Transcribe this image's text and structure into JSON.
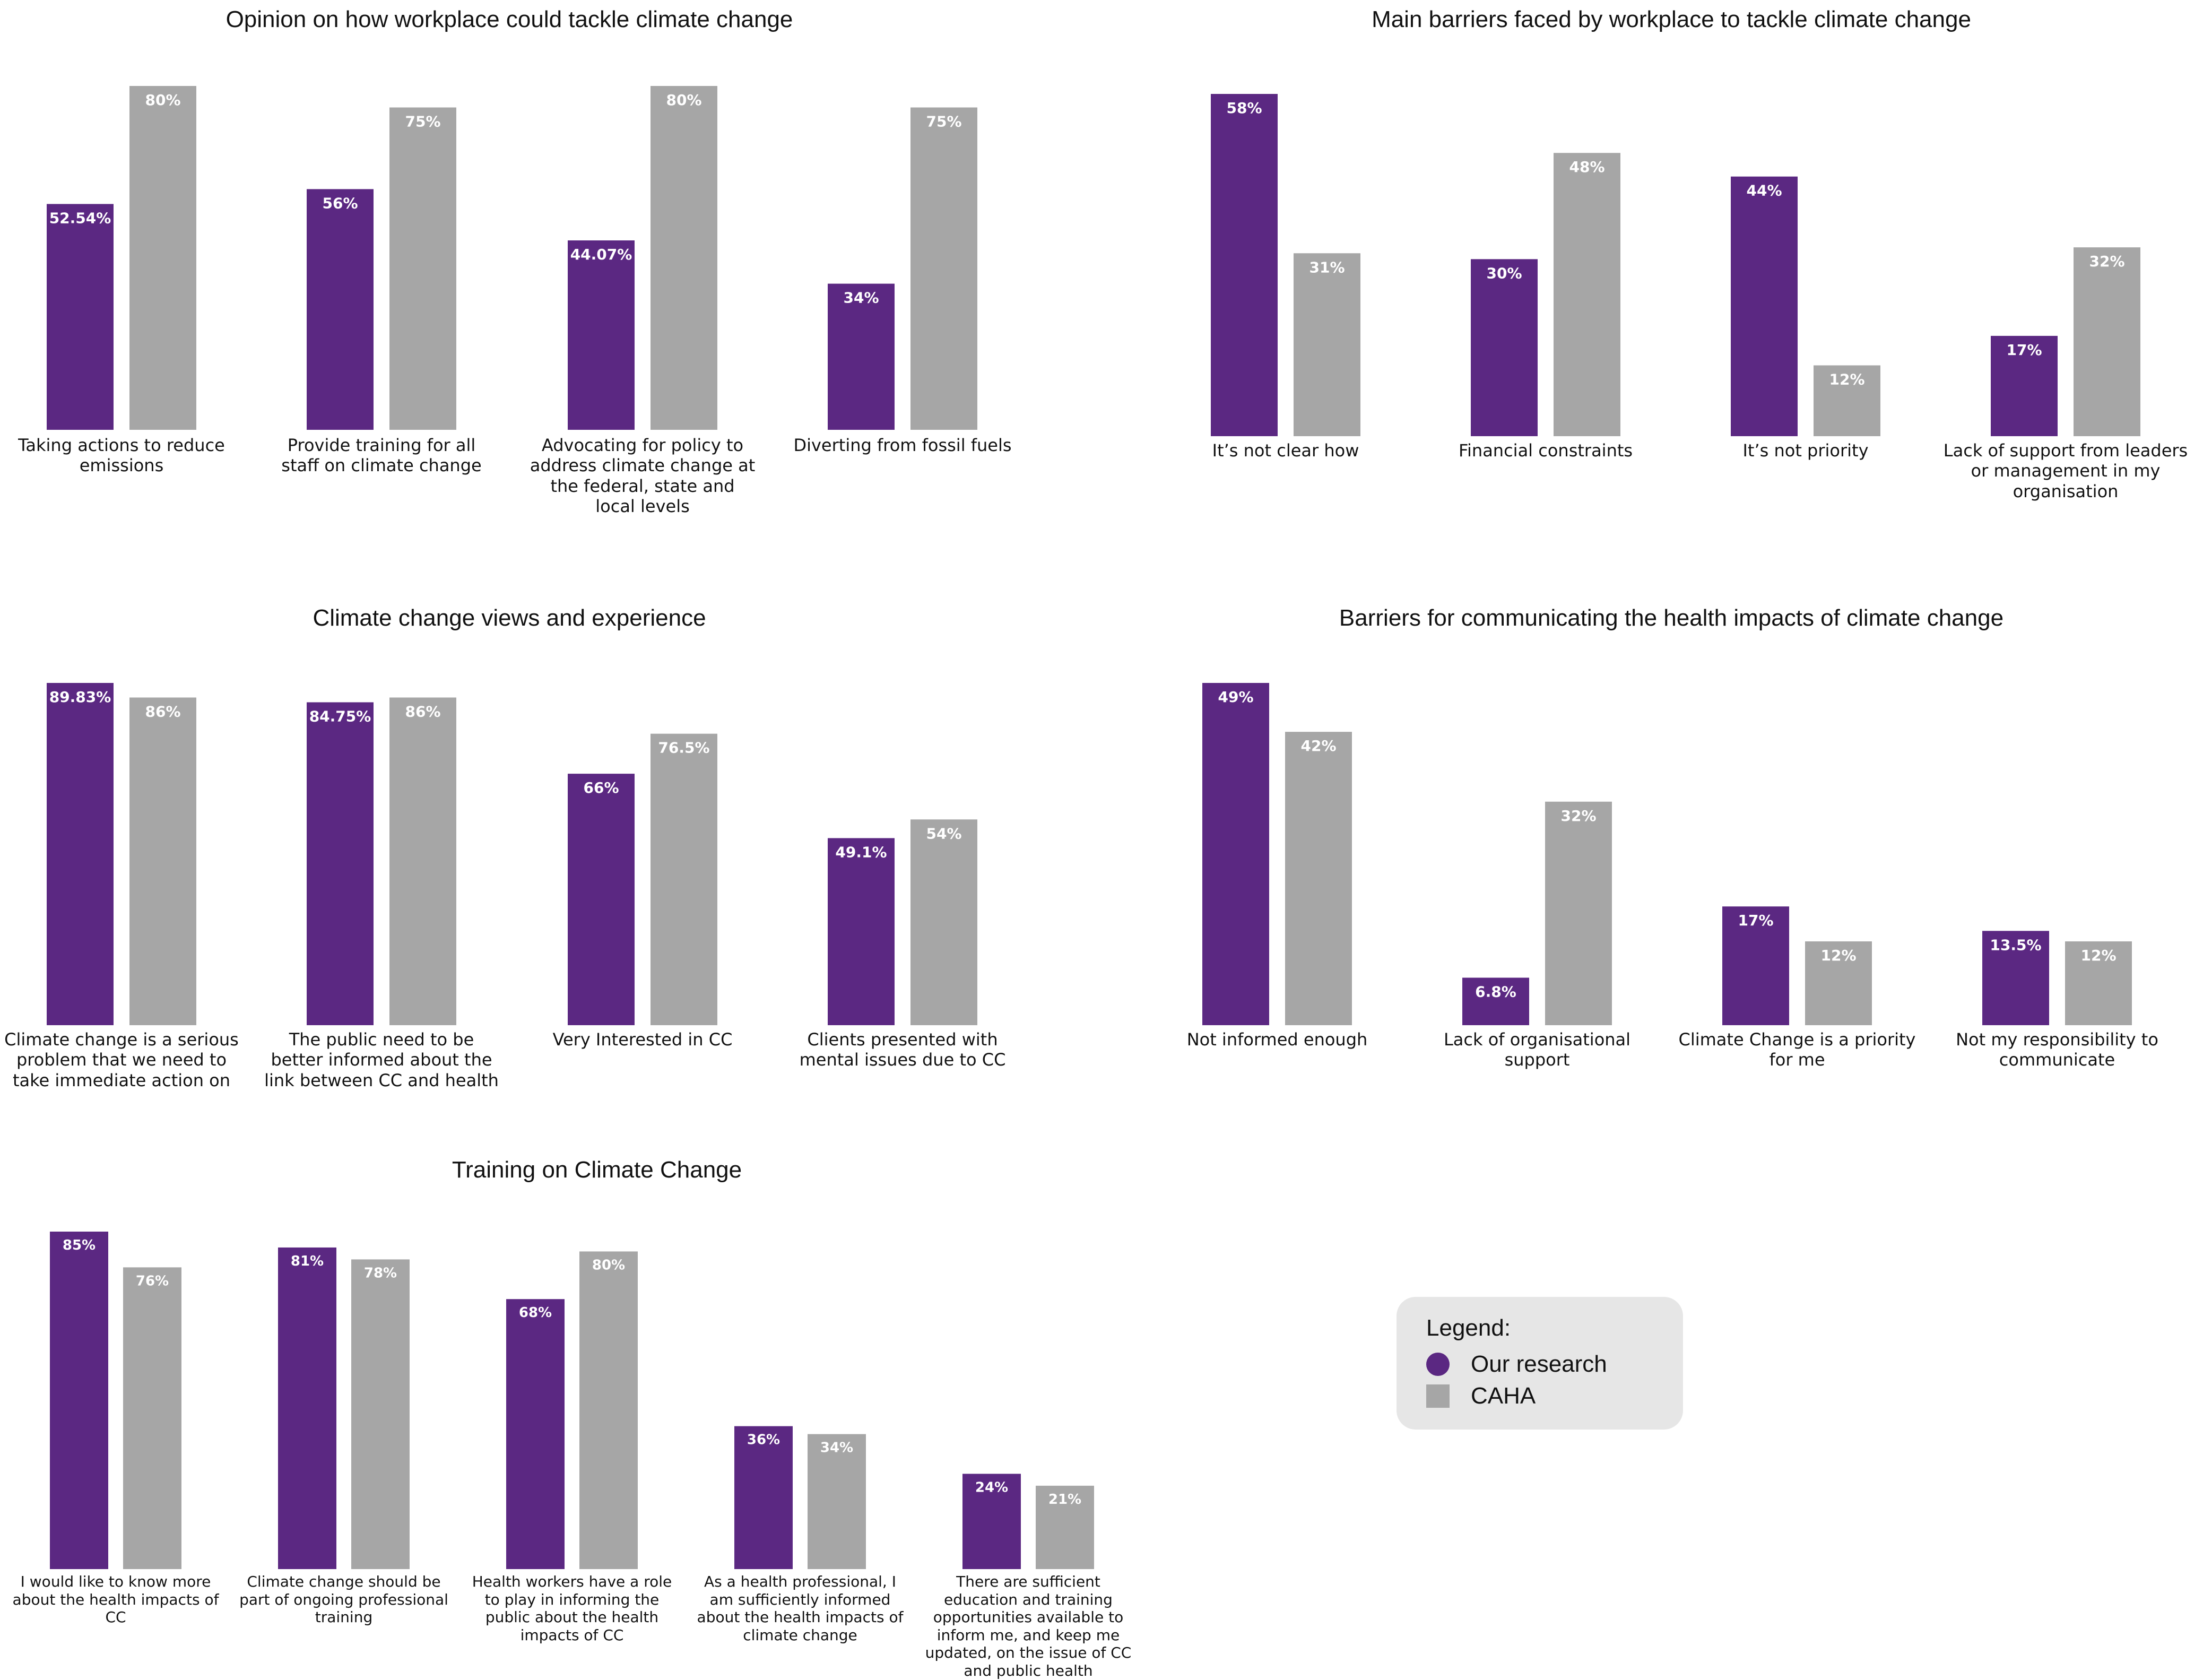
{
  "colors": {
    "our_research": "#5b2882",
    "caha": "#a6a6a6",
    "value_label": "#ffffff"
  },
  "legend": {
    "title": "Legend:",
    "items": [
      {
        "label": "Our research",
        "shape": "circle",
        "color": "#5b2882"
      },
      {
        "label": "CAHA",
        "shape": "square",
        "color": "#a6a6a6"
      }
    ]
  },
  "chart_data": [
    {
      "type": "bar",
      "title": "Opinion on how workplace could tackle climate change",
      "categories": [
        "Taking actions to reduce emissions",
        "Provide training for all staff on climate change",
        "Advocating for policy to address climate change at the federal, state and local levels",
        "Diverting from fossil fuels"
      ],
      "series": [
        {
          "name": "Our research",
          "values": [
            52.54,
            56,
            44.07,
            34
          ],
          "labels": [
            "52.54%",
            "56%",
            "44.07%",
            "34%"
          ]
        },
        {
          "name": "CAHA",
          "values": [
            80,
            75,
            80,
            75
          ],
          "labels": [
            "80%",
            "75%",
            "80%",
            "75%"
          ]
        }
      ],
      "ylim": [
        0,
        80
      ],
      "grid": false
    },
    {
      "type": "bar",
      "title": "Main barriers faced by workplace to tackle climate change",
      "categories": [
        "It’s not clear how",
        "Financial constraints",
        "It’s not priority",
        "Lack of support from leaders or management in my organisation"
      ],
      "series": [
        {
          "name": "Our research",
          "values": [
            58,
            30,
            44,
            17
          ],
          "labels": [
            "58%",
            "30%",
            "44%",
            "17%"
          ]
        },
        {
          "name": "CAHA",
          "values": [
            31,
            48,
            12,
            32
          ],
          "labels": [
            "31%",
            "48%",
            "12%",
            "32%"
          ]
        }
      ],
      "ylim": [
        0,
        58
      ],
      "grid": false
    },
    {
      "type": "bar",
      "title": "Climate change views and experience",
      "categories": [
        "Climate change is a serious problem that we need to take immediate action on",
        "The public need to be better informed about the link between CC and health",
        "Very Interested in CC",
        "Clients presented with mental issues due to CC"
      ],
      "series": [
        {
          "name": "Our research",
          "values": [
            89.83,
            84.75,
            66,
            49.1
          ],
          "labels": [
            "89.83%",
            "84.75%",
            "66%",
            "49.1%"
          ]
        },
        {
          "name": "CAHA",
          "values": [
            86,
            86,
            76.5,
            54
          ],
          "labels": [
            "86%",
            "86%",
            "76.5%",
            "54%"
          ]
        }
      ],
      "ylim": [
        0,
        89.83
      ],
      "grid": false
    },
    {
      "type": "bar",
      "title": "Barriers for communicating the health impacts of climate change",
      "categories": [
        "Not informed enough",
        "Lack of organisational support",
        "Climate Change is a priority for me",
        "Not my responsibility to communicate"
      ],
      "series": [
        {
          "name": "Our research",
          "values": [
            49,
            6.8,
            17,
            13.5
          ],
          "labels": [
            "49%",
            "6.8%",
            "17%",
            "13.5%"
          ]
        },
        {
          "name": "CAHA",
          "values": [
            42,
            32,
            12,
            12
          ],
          "labels": [
            "42%",
            "32%",
            "12%",
            "12%"
          ]
        }
      ],
      "ylim": [
        0,
        49
      ],
      "grid": false
    },
    {
      "type": "bar",
      "title": "Training on Climate Change",
      "categories": [
        "I would like to know more about the health impacts of CC",
        "Climate change should be part of ongoing professional training",
        "Health workers have a role to play in informing the public about the health impacts of CC",
        "As a health professional, I am sufficiently informed about the health impacts of climate change",
        "There are sufficient education and training opportunities available to inform me, and keep me updated, on the issue of CC and public health"
      ],
      "series": [
        {
          "name": "Our research",
          "values": [
            85,
            81,
            68,
            36,
            24
          ],
          "labels": [
            "85%",
            "81%",
            "68%",
            "36%",
            "24%"
          ]
        },
        {
          "name": "CAHA",
          "values": [
            76,
            78,
            80,
            34,
            21
          ],
          "labels": [
            "76%",
            "78%",
            "80%",
            "34%",
            "21%"
          ]
        }
      ],
      "ylim": [
        0,
        85
      ],
      "grid": false
    }
  ]
}
